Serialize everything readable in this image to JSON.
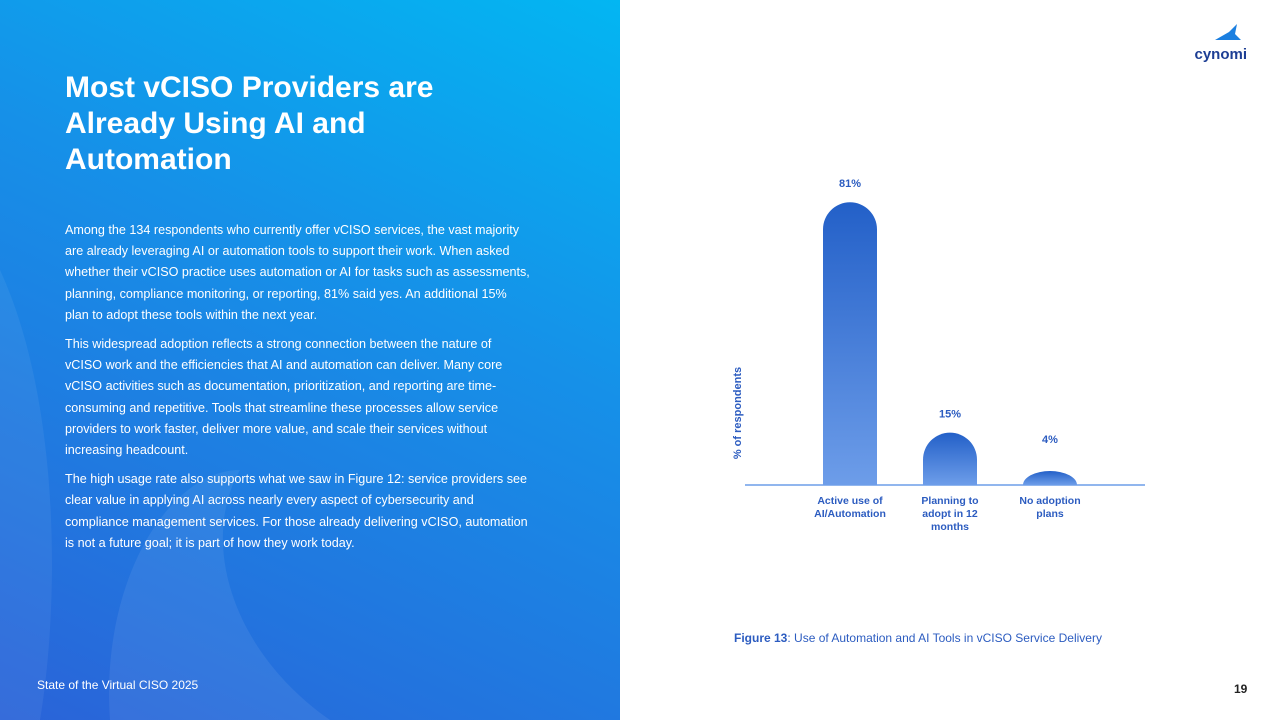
{
  "header": {
    "title": "Most vCISO Providers are Already Using AI and Automation",
    "logo": "cynomi"
  },
  "paragraphs": [
    "Among the 134 respondents who currently offer vCISO services, the vast majority are already leveraging AI or automation tools to support their work. When asked whether their vCISO practice uses automation or AI for tasks such as assessments, planning, compliance monitoring, or reporting, 81% said yes. An additional 15% plan to adopt these tools within the next year.",
    "This widespread adoption reflects a strong connection between the nature of vCISO work and the efficiencies that AI and automation can deliver. Many core vCISO activities such as documentation, prioritization, and reporting are time-consuming and repetitive. Tools that streamline these processes allow service providers to work faster, deliver more value, and scale their services without increasing headcount.",
    "The high usage rate also supports what we saw in Figure 12: service providers see clear value in applying AI across nearly every aspect of cybersecurity and compliance management services. For those already delivering vCISO, automation is not a future goal; it is part of how they work today."
  ],
  "figure": {
    "label": "Figure 13",
    "caption": ": Use of Automation and AI Tools in vCISO Service Delivery"
  },
  "footer": {
    "report": "State of the Virtual CISO 2025",
    "page": "19"
  },
  "chart_data": {
    "type": "bar",
    "y_label": "% of respondents",
    "categories": [
      "Active use of AI/Automation",
      "Planning to adopt in 12 months",
      "No adoption plans"
    ],
    "values": [
      81,
      15,
      4
    ],
    "value_labels": [
      "81%",
      "15%",
      "4%"
    ],
    "color_top": "#2360c8",
    "color_bottom": "#6d9de9"
  }
}
